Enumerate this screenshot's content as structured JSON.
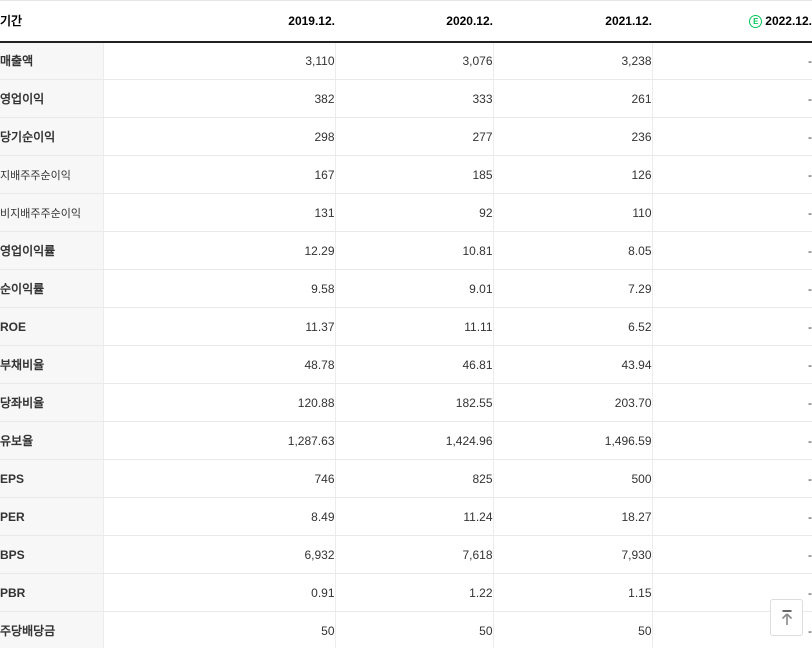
{
  "table": {
    "header": {
      "period_label": "기간",
      "columns": [
        "2019.12.",
        "2020.12.",
        "2021.12.",
        "2022.12."
      ],
      "estimate_badge": "E"
    },
    "rows": [
      {
        "label": "매출액",
        "sub": false,
        "values": [
          "3,110",
          "3,076",
          "3,238",
          "-"
        ]
      },
      {
        "label": "영업이익",
        "sub": false,
        "values": [
          "382",
          "333",
          "261",
          "-"
        ]
      },
      {
        "label": "당기순이익",
        "sub": false,
        "values": [
          "298",
          "277",
          "236",
          "-"
        ]
      },
      {
        "label": "지배주주순이익",
        "sub": true,
        "values": [
          "167",
          "185",
          "126",
          "-"
        ]
      },
      {
        "label": "비지배주주순이익",
        "sub": true,
        "values": [
          "131",
          "92",
          "110",
          "-"
        ]
      },
      {
        "label": "영업이익률",
        "sub": false,
        "values": [
          "12.29",
          "10.81",
          "8.05",
          "-"
        ]
      },
      {
        "label": "순이익률",
        "sub": false,
        "values": [
          "9.58",
          "9.01",
          "7.29",
          "-"
        ]
      },
      {
        "label": "ROE",
        "sub": false,
        "values": [
          "11.37",
          "11.11",
          "6.52",
          "-"
        ]
      },
      {
        "label": "부채비율",
        "sub": false,
        "values": [
          "48.78",
          "46.81",
          "43.94",
          "-"
        ]
      },
      {
        "label": "당좌비율",
        "sub": false,
        "values": [
          "120.88",
          "182.55",
          "203.70",
          "-"
        ]
      },
      {
        "label": "유보율",
        "sub": false,
        "values": [
          "1,287.63",
          "1,424.96",
          "1,496.59",
          "-"
        ]
      },
      {
        "label": "EPS",
        "sub": false,
        "values": [
          "746",
          "825",
          "500",
          "-"
        ]
      },
      {
        "label": "PER",
        "sub": false,
        "values": [
          "8.49",
          "11.24",
          "18.27",
          "-"
        ]
      },
      {
        "label": "BPS",
        "sub": false,
        "values": [
          "6,932",
          "7,618",
          "7,930",
          "-"
        ]
      },
      {
        "label": "PBR",
        "sub": false,
        "values": [
          "0.91",
          "1.22",
          "1.15",
          "-"
        ]
      },
      {
        "label": "주당배당금",
        "sub": false,
        "values": [
          "50",
          "50",
          "50",
          "-"
        ]
      }
    ]
  },
  "colors": {
    "estimate_green": "#03c75a",
    "header_border": "#222222",
    "grid_line": "#e9e9e9",
    "label_bg": "#f7f7f7"
  }
}
